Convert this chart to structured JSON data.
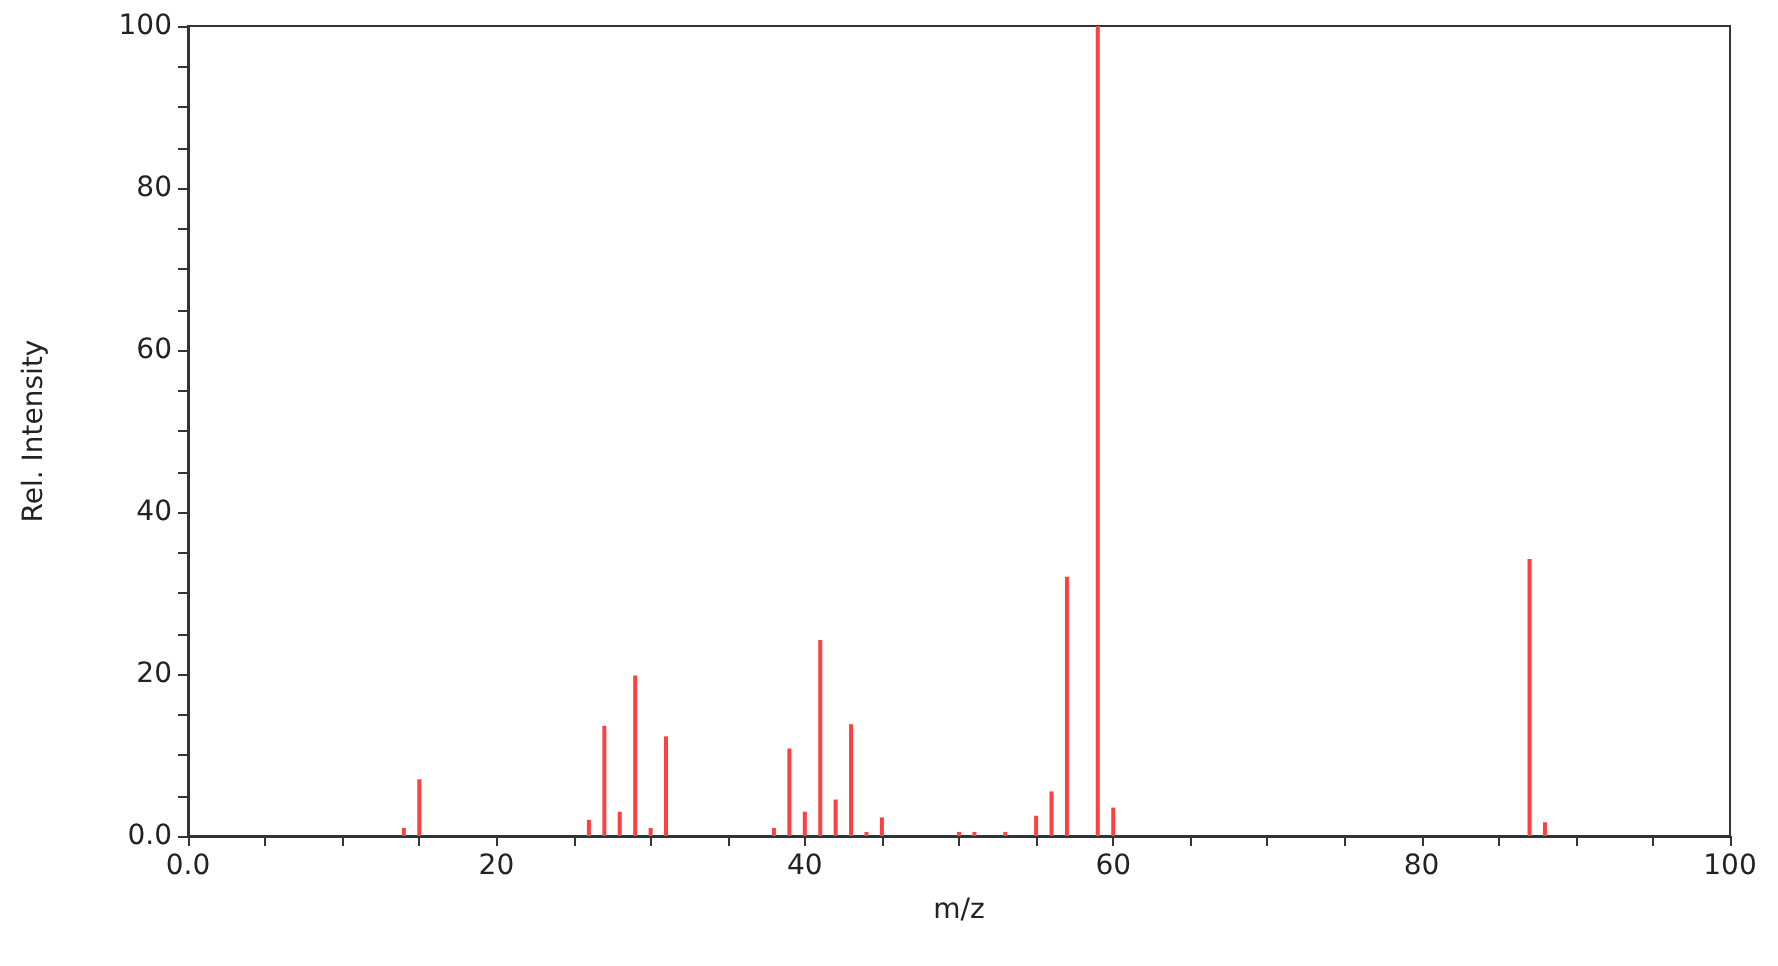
{
  "chart_data": {
    "type": "bar",
    "xlabel": "m/z",
    "ylabel": "Rel. Intensity",
    "x": [
      14,
      15,
      26,
      27,
      28,
      29,
      30,
      31,
      38,
      39,
      40,
      41,
      42,
      43,
      44,
      45,
      50,
      51,
      53,
      55,
      56,
      57,
      59,
      60,
      87,
      88
    ],
    "series": [
      {
        "color": "#ff4040",
        "values": [
          1,
          7,
          2,
          13.6,
          3,
          19.8,
          1,
          12.3,
          1,
          10.8,
          3,
          24.2,
          4.5,
          13.8,
          0.5,
          2.3,
          0.5,
          0.5,
          0.5,
          2.5,
          5.5,
          32,
          100,
          3.5,
          34.2,
          1.7
        ]
      }
    ],
    "xlim": [
      0,
      100
    ],
    "xticks": [
      {
        "value": 0,
        "label": "0.0"
      },
      {
        "value": 5,
        "label": null
      },
      {
        "value": 10,
        "label": null
      },
      {
        "value": 15,
        "label": null
      },
      20,
      {
        "value": 25,
        "label": null
      },
      {
        "value": 30,
        "label": null
      },
      {
        "value": 35,
        "label": null
      },
      40,
      {
        "value": 45,
        "label": null
      },
      {
        "value": 50,
        "label": null
      },
      {
        "value": 55,
        "label": null
      },
      60,
      {
        "value": 65,
        "label": null
      },
      {
        "value": 70,
        "label": null
      },
      {
        "value": 75,
        "label": null
      },
      80,
      {
        "value": 85,
        "label": null
      },
      {
        "value": 90,
        "label": null
      },
      {
        "value": 95,
        "label": null
      },
      100
    ],
    "ylim": [
      0,
      100
    ],
    "yticks": [
      {
        "value": 0,
        "label": "0.0"
      },
      {
        "value": 5,
        "label": null
      },
      {
        "value": 10,
        "label": null
      },
      {
        "value": 15,
        "label": null
      },
      20,
      {
        "value": 25,
        "label": null
      },
      {
        "value": 30,
        "label": null
      },
      {
        "value": 35,
        "label": null
      },
      40,
      {
        "value": 45,
        "label": null
      },
      {
        "value": 50,
        "label": null
      },
      {
        "value": 55,
        "label": null
      },
      60,
      {
        "value": 65,
        "label": null
      },
      {
        "value": 70,
        "label": null
      },
      {
        "value": 75,
        "label": null
      },
      80,
      {
        "value": 85,
        "label": null
      },
      {
        "value": 90,
        "label": null
      },
      {
        "value": 95,
        "label": null
      },
      100
    ],
    "grid": false
  }
}
